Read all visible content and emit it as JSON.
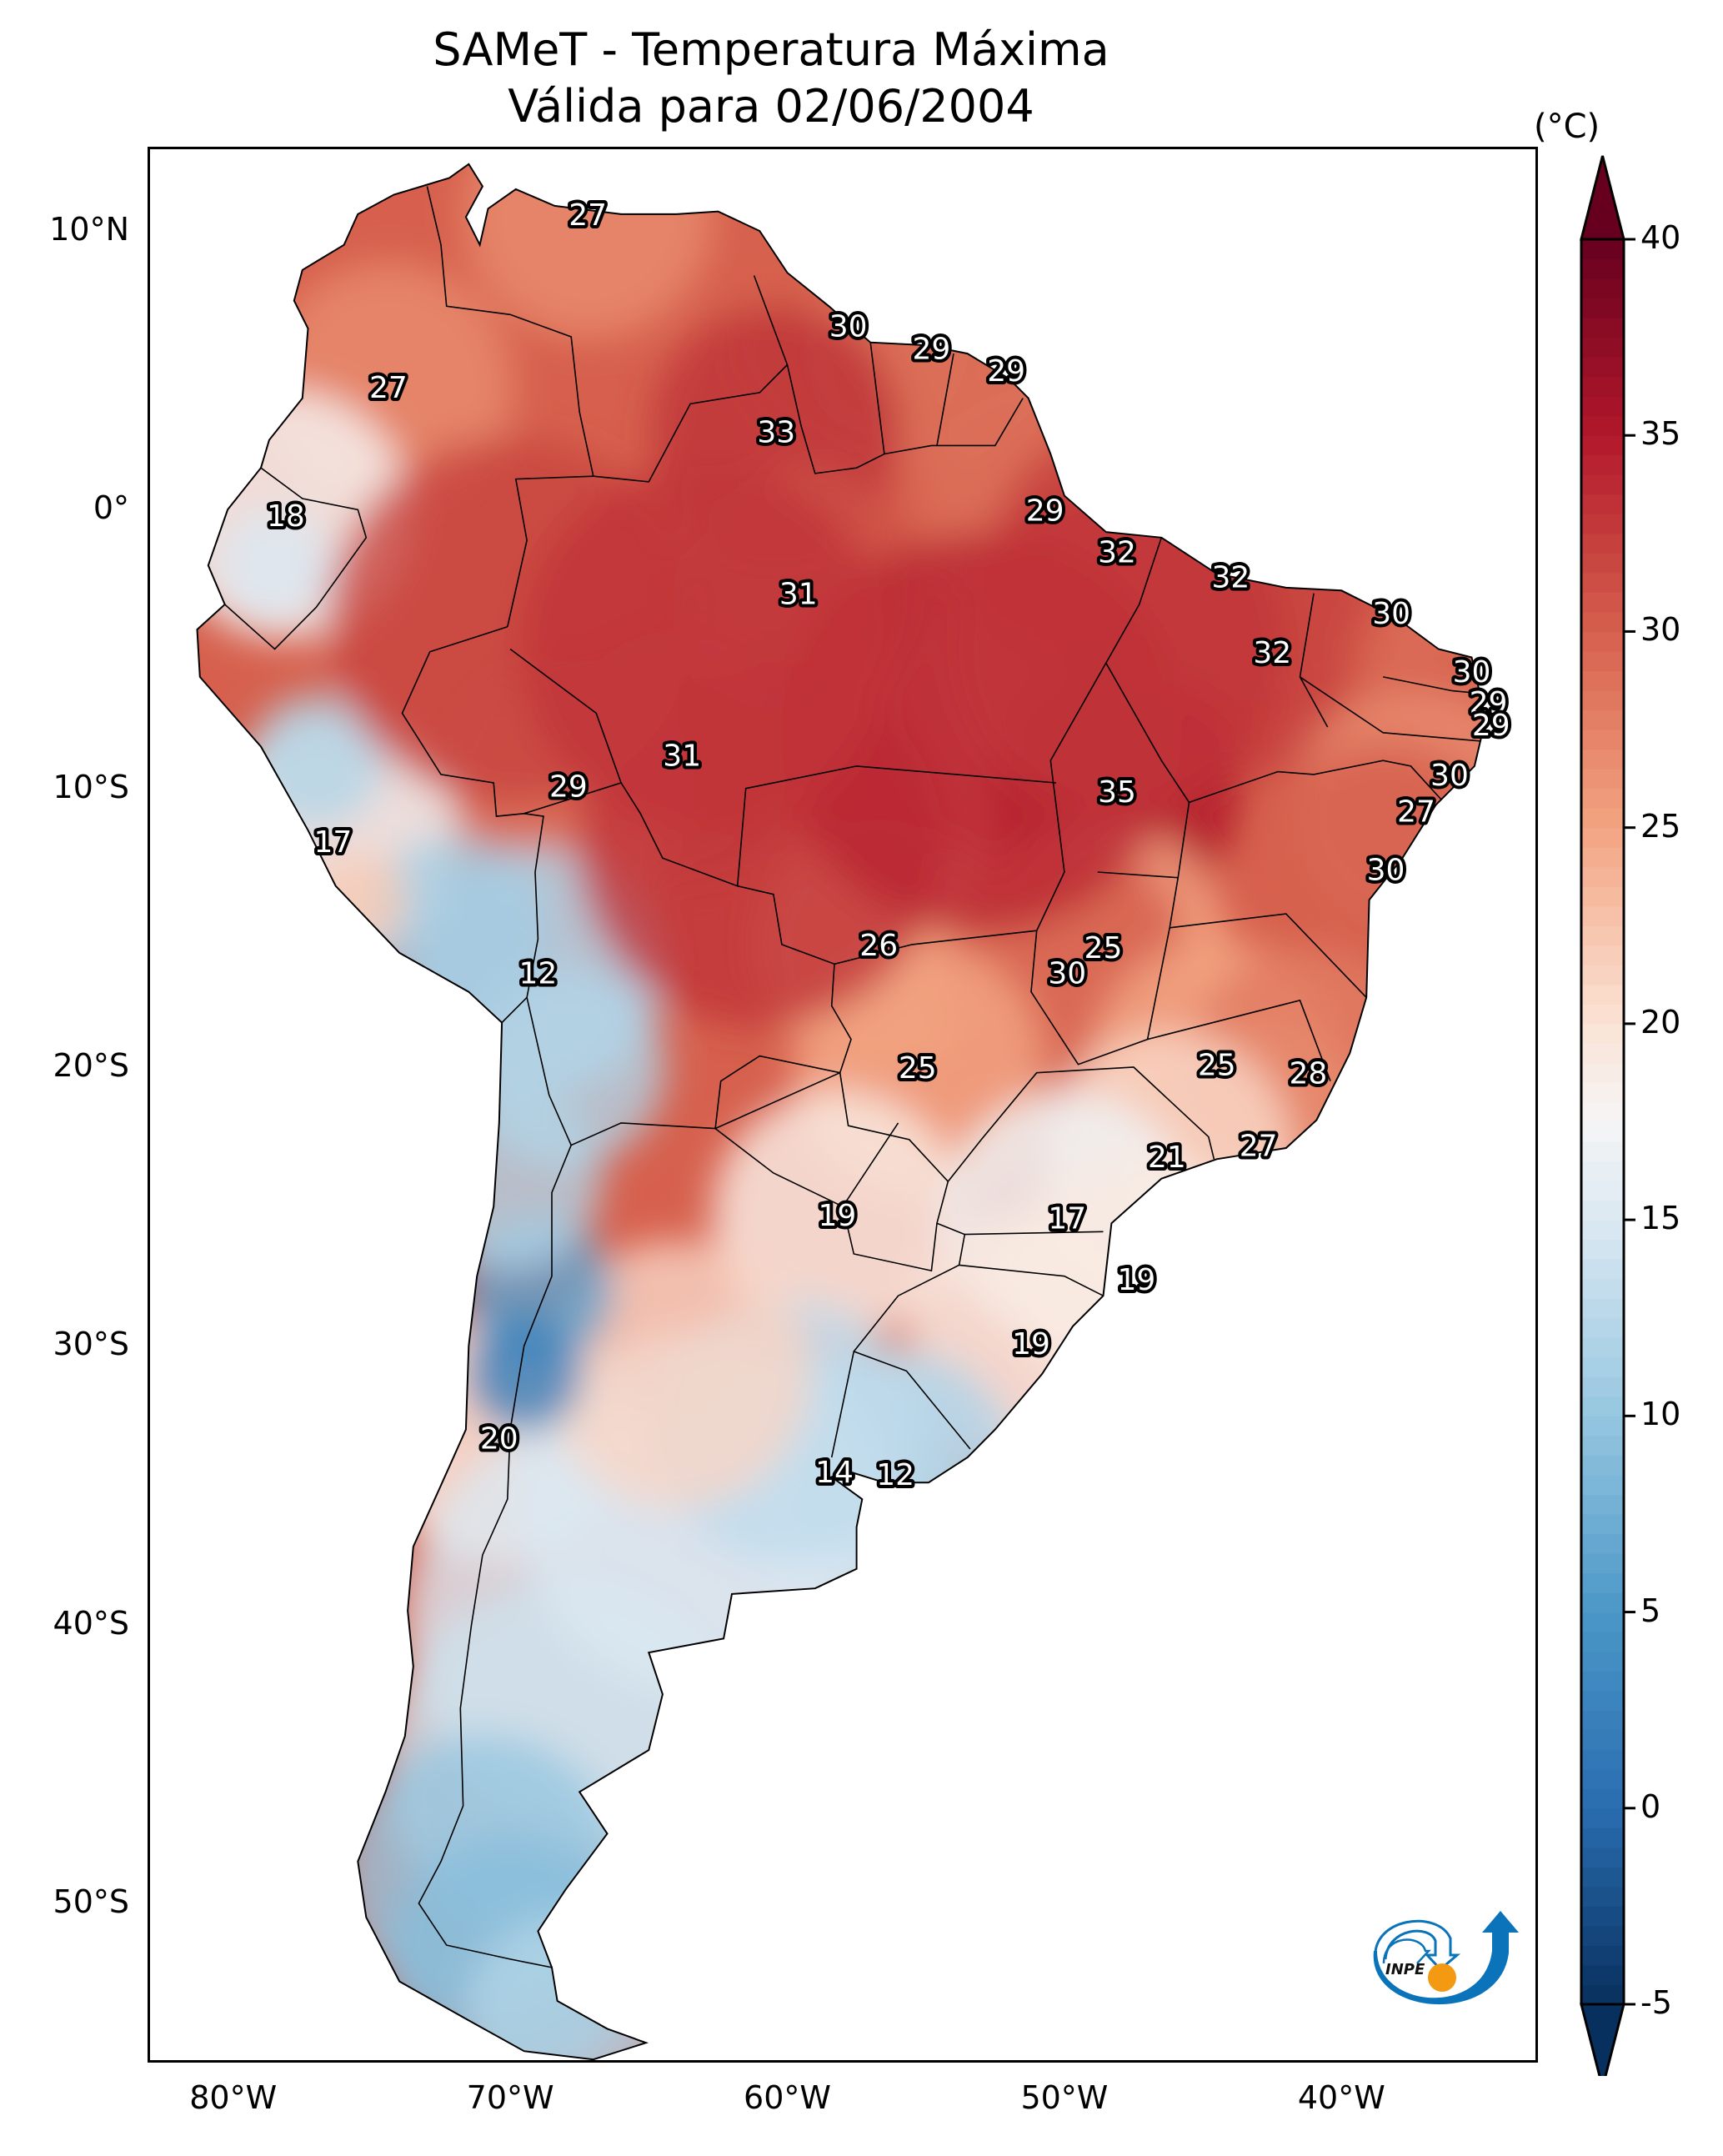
{
  "chart_data": {
    "type": "heatmap",
    "title": "SAMeT - Temperatura Máxima",
    "subtitle": "Válida para 02/06/2004",
    "variable": "Temperatura Máxima",
    "units_label": "(°C)",
    "region": "South America",
    "xlim": [
      -83,
      -33
    ],
    "ylim": [
      -56,
      13
    ],
    "x_ticks": [
      -80,
      -70,
      -60,
      -50,
      -40
    ],
    "x_tick_labels": [
      "80°W",
      "70°W",
      "60°W",
      "50°W",
      "40°W"
    ],
    "y_ticks": [
      10,
      0,
      -10,
      -20,
      -30,
      -40,
      -50
    ],
    "y_tick_labels": [
      "10°N",
      "0°",
      "10°S",
      "20°S",
      "30°S",
      "40°S",
      "50°S"
    ],
    "grid": false,
    "colorbar": {
      "colormap": "RdBu_r",
      "range": [
        -5,
        40
      ],
      "extend": "both",
      "ticks": [
        40,
        35,
        30,
        25,
        20,
        15,
        10,
        5,
        0,
        -5
      ],
      "tick_labels": [
        "40",
        "35",
        "30",
        "25",
        "20",
        "15",
        "10",
        "5",
        "0",
        "-5"
      ],
      "placement": "right",
      "stops": [
        {
          "value": -5,
          "color": "#08305e"
        },
        {
          "value": 0,
          "color": "#2a6db0"
        },
        {
          "value": 5,
          "color": "#4b97c8"
        },
        {
          "value": 10,
          "color": "#96c6e0"
        },
        {
          "value": 15,
          "color": "#dbe9f2"
        },
        {
          "value": 17.5,
          "color": "#f5f5f5"
        },
        {
          "value": 20,
          "color": "#fbe3d6"
        },
        {
          "value": 25,
          "color": "#f3a482"
        },
        {
          "value": 30,
          "color": "#d6604d"
        },
        {
          "value": 35,
          "color": "#b2182b"
        },
        {
          "value": 40,
          "color": "#67001f"
        }
      ]
    },
    "labels": [
      {
        "value": 27,
        "lon": -67.2,
        "lat": 10.6
      },
      {
        "value": 27,
        "lon": -74.4,
        "lat": 4.4
      },
      {
        "value": 30,
        "lon": -57.8,
        "lat": 6.6
      },
      {
        "value": 29,
        "lon": -54.8,
        "lat": 5.8
      },
      {
        "value": 29,
        "lon": -52.1,
        "lat": 5.0
      },
      {
        "value": 33,
        "lon": -60.4,
        "lat": 2.8
      },
      {
        "value": 18,
        "lon": -78.1,
        "lat": -0.2
      },
      {
        "value": 29,
        "lon": -50.7,
        "lat": 0.0
      },
      {
        "value": 32,
        "lon": -48.1,
        "lat": -1.5
      },
      {
        "value": 31,
        "lon": -59.6,
        "lat": -3.0
      },
      {
        "value": 32,
        "lon": -44.0,
        "lat": -2.4
      },
      {
        "value": 30,
        "lon": -38.2,
        "lat": -3.7
      },
      {
        "value": 32,
        "lon": -42.5,
        "lat": -5.1
      },
      {
        "value": 30,
        "lon": -35.3,
        "lat": -5.8
      },
      {
        "value": 29,
        "lon": -34.7,
        "lat": -6.9
      },
      {
        "value": 29,
        "lon": -34.6,
        "lat": -7.7
      },
      {
        "value": 31,
        "lon": -63.8,
        "lat": -8.8
      },
      {
        "value": 29,
        "lon": -67.9,
        "lat": -9.9
      },
      {
        "value": 35,
        "lon": -48.1,
        "lat": -10.1
      },
      {
        "value": 30,
        "lon": -36.1,
        "lat": -9.5
      },
      {
        "value": 27,
        "lon": -37.3,
        "lat": -10.8
      },
      {
        "value": 17,
        "lon": -76.4,
        "lat": -11.9
      },
      {
        "value": 30,
        "lon": -38.4,
        "lat": -12.9
      },
      {
        "value": 26,
        "lon": -56.7,
        "lat": -15.6
      },
      {
        "value": 25,
        "lon": -48.6,
        "lat": -15.7
      },
      {
        "value": 30,
        "lon": -49.9,
        "lat": -16.6
      },
      {
        "value": 12,
        "lon": -69.0,
        "lat": -16.6
      },
      {
        "value": 25,
        "lon": -55.3,
        "lat": -20.0
      },
      {
        "value": 25,
        "lon": -44.5,
        "lat": -19.9
      },
      {
        "value": 28,
        "lon": -41.2,
        "lat": -20.2
      },
      {
        "value": 27,
        "lon": -43.0,
        "lat": -22.8
      },
      {
        "value": 21,
        "lon": -46.3,
        "lat": -23.2
      },
      {
        "value": 19,
        "lon": -58.2,
        "lat": -25.3
      },
      {
        "value": 17,
        "lon": -49.9,
        "lat": -25.4
      },
      {
        "value": 19,
        "lon": -47.4,
        "lat": -27.6
      },
      {
        "value": 19,
        "lon": -51.2,
        "lat": -29.9
      },
      {
        "value": 20,
        "lon": -70.4,
        "lat": -33.3
      },
      {
        "value": 14,
        "lon": -58.3,
        "lat": -34.5
      },
      {
        "value": 12,
        "lon": -56.1,
        "lat": -34.6
      }
    ]
  },
  "header": {
    "title": "SAMeT - Temperatura Máxima",
    "subtitle": "Válida para 02/06/2004"
  },
  "colorbar_unit": "(°C)",
  "logo": {
    "text": "INPE",
    "colors": {
      "primary": "#0a73b9",
      "accent": "#f39a12"
    }
  }
}
